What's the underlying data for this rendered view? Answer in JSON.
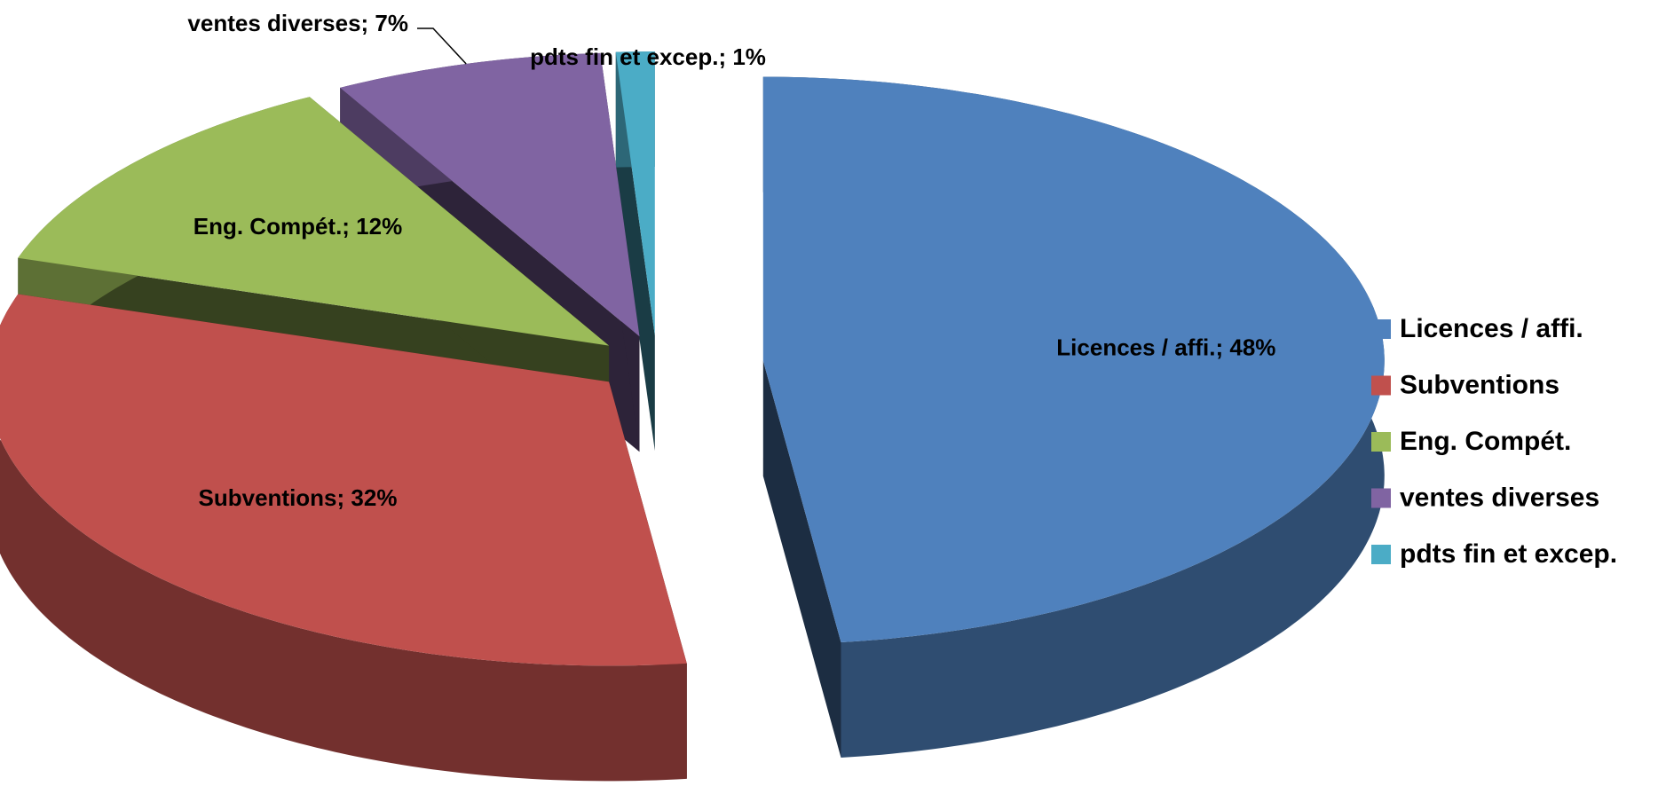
{
  "chart_data": {
    "type": "pie",
    "categories": [
      "Licences / affi.",
      "Subventions",
      "Eng. Compét.",
      "ventes diverses",
      "pdts fin et excep."
    ],
    "values": [
      48,
      32,
      12,
      7,
      1
    ],
    "value_labels": [
      "Licences / affi.; 48%",
      "Subventions; 32%",
      "Eng. Compét.; 12%",
      "ventes diverses; 7%",
      "pdts fin et excep.; 1%"
    ],
    "colors": [
      "#4f81bd",
      "#c0504d",
      "#9bbb59",
      "#8064a2",
      "#4bacc6"
    ],
    "legend": "right"
  }
}
